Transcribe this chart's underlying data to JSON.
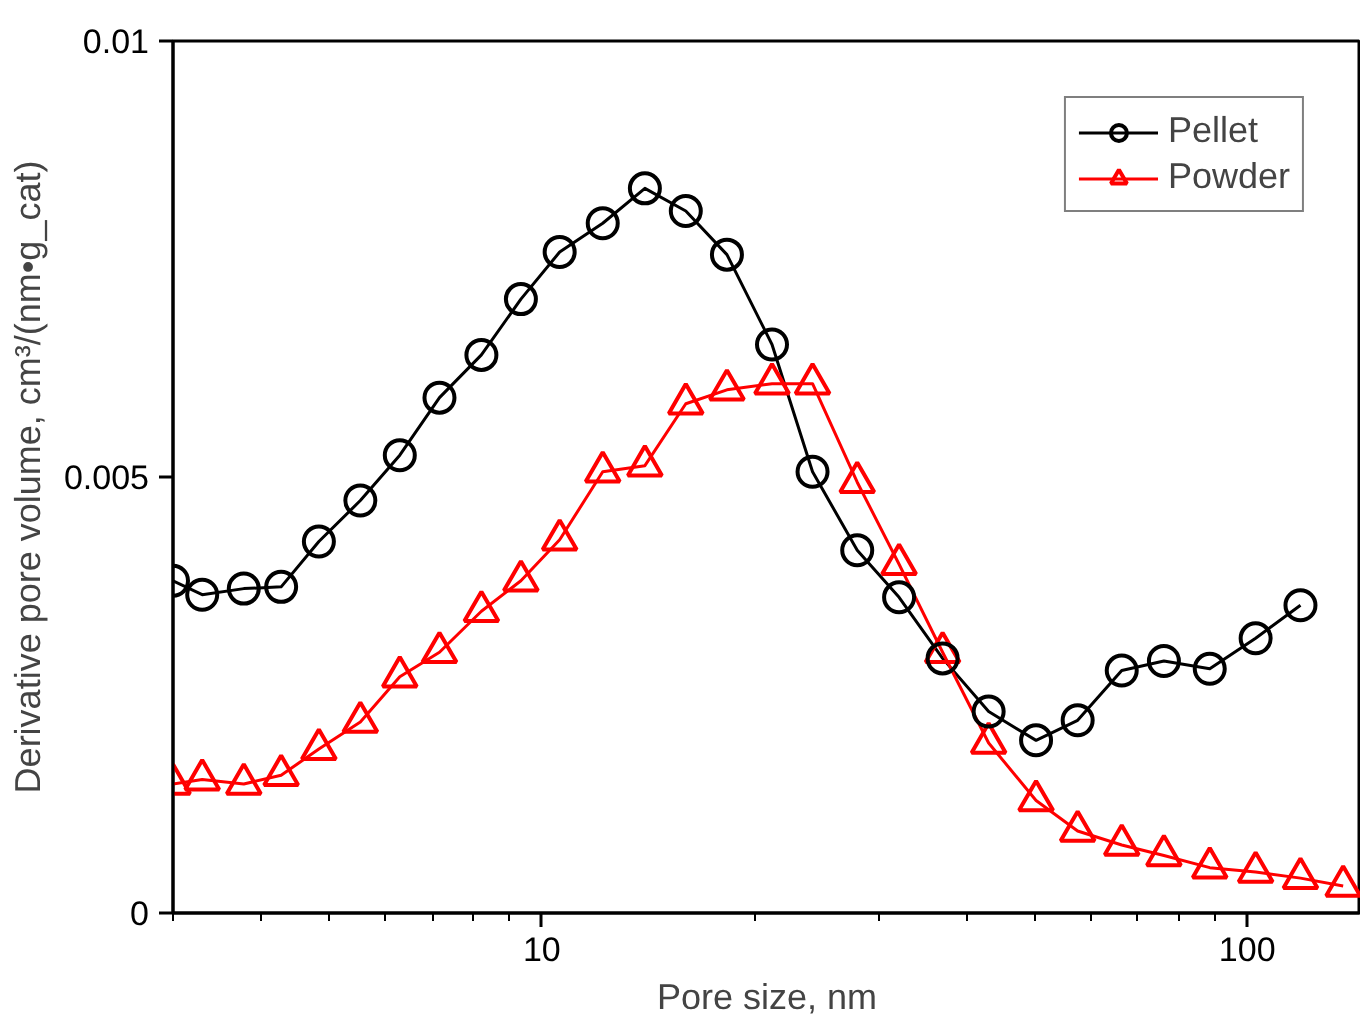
{
  "chart_data": {
    "type": "line",
    "xlabel": "Pore size, nm",
    "ylabel": "Derivative pore volume, cm³/(nm•g_cat)",
    "log": "x",
    "xlim": [
      3,
      145
    ],
    "xticks": [
      10,
      100
    ],
    "ylim": [
      0,
      0.01
    ],
    "yticks": [
      0,
      0.005,
      0.01
    ],
    "grid": false,
    "legend": "top right",
    "line_style": "solid",
    "series": [
      {
        "name": "Pellet",
        "color": "#000000",
        "marker": "circle",
        "x": [
          3,
          3.3,
          3.78,
          4.27,
          4.83,
          5.53,
          6.29,
          7.16,
          8.21,
          9.34,
          10.6,
          12.2,
          14.0,
          16.0,
          18.3,
          21.2,
          24.2,
          28.0,
          32.1,
          37.0,
          43.0,
          50.2,
          57.5,
          66.4,
          76.2,
          88.5,
          102.8,
          119
        ],
        "values": [
          0.00381,
          0.00365,
          0.00372,
          0.00374,
          0.00426,
          0.00473,
          0.00525,
          0.00591,
          0.0064,
          0.00704,
          0.00758,
          0.00791,
          0.00831,
          0.00805,
          0.00755,
          0.00652,
          0.00506,
          0.00416,
          0.00362,
          0.00292,
          0.00231,
          0.00198,
          0.00221,
          0.00278,
          0.00289,
          0.0028,
          0.00315,
          0.00353
        ]
      },
      {
        "name": "Powder",
        "color": "#ff0000",
        "marker": "triangle",
        "x": [
          3,
          3.3,
          3.78,
          4.27,
          4.83,
          5.53,
          6.29,
          7.16,
          8.21,
          9.34,
          10.6,
          12.2,
          14.0,
          16.0,
          18.3,
          21.2,
          24.2,
          28.0,
          32.1,
          37.0,
          43.0,
          50.2,
          57.5,
          66.4,
          76.2,
          88.5,
          102.8,
          119,
          136.8
        ],
        "values": [
          0.00148,
          0.00153,
          0.00148,
          0.00158,
          0.00188,
          0.00219,
          0.00271,
          0.00299,
          0.00346,
          0.00381,
          0.00428,
          0.00506,
          0.00513,
          0.00584,
          0.006,
          0.00607,
          0.00607,
          0.00494,
          0.004,
          0.00299,
          0.00195,
          0.00129,
          0.00094,
          0.00078,
          0.00066,
          0.00052,
          0.00047,
          0.0004,
          0.00031
        ]
      }
    ]
  }
}
